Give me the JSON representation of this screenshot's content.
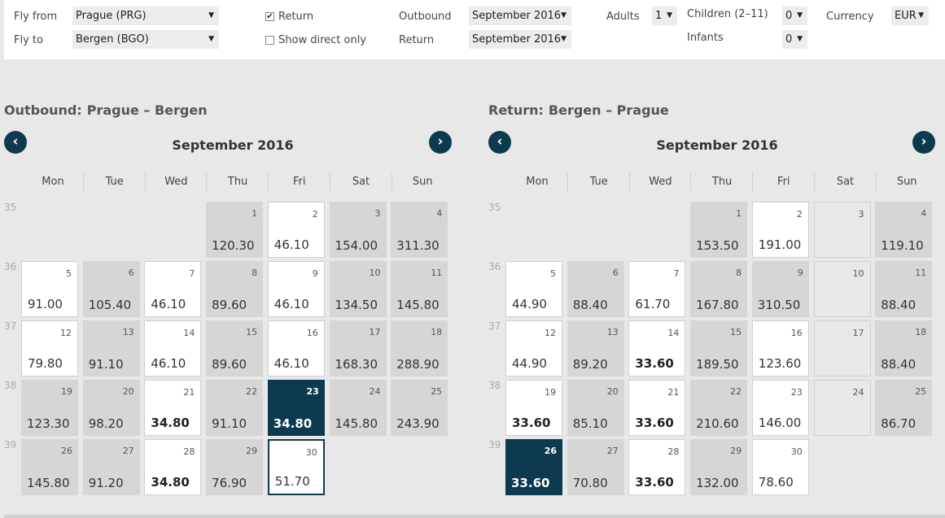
{
  "search": {
    "fly_from_label": "Fly from",
    "fly_from_value": "Prague (PRG)",
    "fly_to_label": "Fly to",
    "fly_to_value": "Bergen (BGO)",
    "return_label": "Return",
    "return_checked": true,
    "direct_label": "Show direct only",
    "direct_checked": false,
    "outbound_label": "Outbound",
    "outbound_value": "September 2016",
    "return_date_label": "Return",
    "return_value": "September 2016",
    "adults_label": "Adults",
    "adults_value": "1",
    "children_label": "Children (2–11)",
    "children_value": "0",
    "infants_label": "Infants",
    "infants_value": "0",
    "currency_label": "Currency",
    "currency_value": "EUR"
  },
  "outbound": {
    "heading": "Outbound:",
    "route": "Prague – Bergen",
    "month": "September 2016",
    "prev_icon": "chevron-left-icon",
    "next_icon": "chevron-right-icon"
  },
  "return": {
    "heading": "Return:",
    "route": "Bergen – Prague",
    "month": "September 2016",
    "prev_icon": "chevron-left-icon",
    "next_icon": "chevron-right-icon"
  },
  "weekdays": [
    "Mon",
    "Tue",
    "Wed",
    "Thu",
    "Fri",
    "Sat",
    "Sun"
  ],
  "weeks": [
    "35",
    "36",
    "37",
    "38",
    "39"
  ],
  "outbound_days": [
    {
      "day": "1",
      "price": "120.30",
      "style": "gray"
    },
    {
      "day": "2",
      "price": "46.10",
      "style": "white"
    },
    {
      "day": "3",
      "price": "154.00",
      "style": "gray"
    },
    {
      "day": "4",
      "price": "311.30",
      "style": "gray"
    },
    {
      "day": "5",
      "price": "91.00",
      "style": "white"
    },
    {
      "day": "6",
      "price": "105.40",
      "style": "gray"
    },
    {
      "day": "7",
      "price": "46.10",
      "style": "white"
    },
    {
      "day": "8",
      "price": "89.60",
      "style": "gray"
    },
    {
      "day": "9",
      "price": "46.10",
      "style": "white"
    },
    {
      "day": "10",
      "price": "134.50",
      "style": "gray"
    },
    {
      "day": "11",
      "price": "145.80",
      "style": "gray"
    },
    {
      "day": "12",
      "price": "79.80",
      "style": "white"
    },
    {
      "day": "13",
      "price": "91.10",
      "style": "gray"
    },
    {
      "day": "14",
      "price": "46.10",
      "style": "white"
    },
    {
      "day": "15",
      "price": "89.60",
      "style": "gray"
    },
    {
      "day": "16",
      "price": "46.10",
      "style": "white"
    },
    {
      "day": "17",
      "price": "168.30",
      "style": "gray"
    },
    {
      "day": "18",
      "price": "288.90",
      "style": "gray"
    },
    {
      "day": "19",
      "price": "123.30",
      "style": "gray"
    },
    {
      "day": "20",
      "price": "98.20",
      "style": "gray"
    },
    {
      "day": "21",
      "price": "34.80",
      "style": "white",
      "cheap": true
    },
    {
      "day": "22",
      "price": "91.10",
      "style": "gray"
    },
    {
      "day": "23",
      "price": "34.80",
      "style": "selected",
      "cheap": true
    },
    {
      "day": "24",
      "price": "145.80",
      "style": "gray"
    },
    {
      "day": "25",
      "price": "243.90",
      "style": "gray"
    },
    {
      "day": "26",
      "price": "145.80",
      "style": "gray"
    },
    {
      "day": "27",
      "price": "91.20",
      "style": "gray"
    },
    {
      "day": "28",
      "price": "34.80",
      "style": "white",
      "cheap": true
    },
    {
      "day": "29",
      "price": "76.90",
      "style": "gray"
    },
    {
      "day": "30",
      "price": "51.70",
      "style": "outlined"
    }
  ],
  "return_days": [
    {
      "day": "1",
      "price": "153.50",
      "style": "gray"
    },
    {
      "day": "2",
      "price": "191.00",
      "style": "white"
    },
    {
      "day": "3",
      "price": "",
      "style": "empty"
    },
    {
      "day": "4",
      "price": "119.10",
      "style": "gray"
    },
    {
      "day": "5",
      "price": "44.90",
      "style": "white"
    },
    {
      "day": "6",
      "price": "88.40",
      "style": "gray"
    },
    {
      "day": "7",
      "price": "61.70",
      "style": "white"
    },
    {
      "day": "8",
      "price": "167.80",
      "style": "gray"
    },
    {
      "day": "9",
      "price": "310.50",
      "style": "gray"
    },
    {
      "day": "10",
      "price": "",
      "style": "empty"
    },
    {
      "day": "11",
      "price": "88.40",
      "style": "gray"
    },
    {
      "day": "12",
      "price": "44.90",
      "style": "white"
    },
    {
      "day": "13",
      "price": "89.20",
      "style": "gray"
    },
    {
      "day": "14",
      "price": "33.60",
      "style": "white",
      "cheap": true
    },
    {
      "day": "15",
      "price": "189.50",
      "style": "gray"
    },
    {
      "day": "16",
      "price": "123.60",
      "style": "white"
    },
    {
      "day": "17",
      "price": "",
      "style": "empty"
    },
    {
      "day": "18",
      "price": "88.40",
      "style": "gray"
    },
    {
      "day": "19",
      "price": "33.60",
      "style": "white",
      "cheap": true
    },
    {
      "day": "20",
      "price": "85.10",
      "style": "gray"
    },
    {
      "day": "21",
      "price": "33.60",
      "style": "white",
      "cheap": true
    },
    {
      "day": "22",
      "price": "210.60",
      "style": "gray"
    },
    {
      "day": "23",
      "price": "146.00",
      "style": "white"
    },
    {
      "day": "24",
      "price": "",
      "style": "empty"
    },
    {
      "day": "25",
      "price": "86.70",
      "style": "gray"
    },
    {
      "day": "26",
      "price": "33.60",
      "style": "selected",
      "cheap": true
    },
    {
      "day": "27",
      "price": "70.80",
      "style": "gray"
    },
    {
      "day": "28",
      "price": "33.60",
      "style": "white",
      "cheap": true
    },
    {
      "day": "29",
      "price": "132.00",
      "style": "gray"
    },
    {
      "day": "30",
      "price": "78.60",
      "style": "white"
    }
  ],
  "colors": {
    "accent": "#0d3a4f",
    "cell_gray": "#d6d6d6",
    "background": "#e8e8e8"
  }
}
